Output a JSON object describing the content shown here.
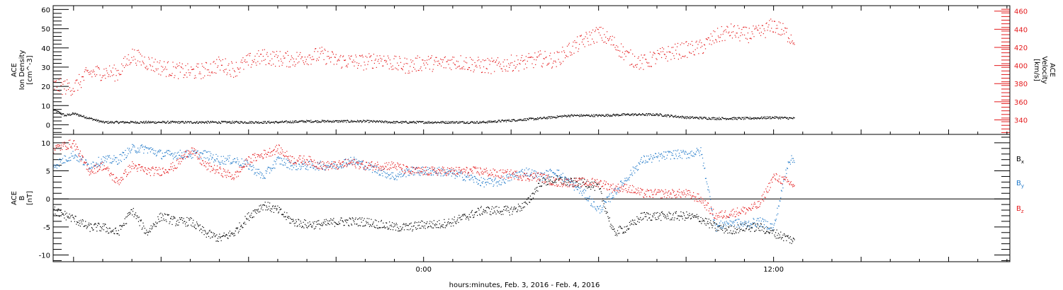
{
  "chart_data": [
    {
      "type": "scatter",
      "panel": "top",
      "ylabel_left": [
        "ACE",
        "Ion Density",
        "[cm^-3]"
      ],
      "ylabel_right": [
        "ACE",
        "Velocity",
        "[km/s]"
      ],
      "ylim_left": [
        -5,
        62
      ],
      "ylim_right": [
        324,
        466
      ],
      "yticks_left": [
        "0",
        "10",
        "20",
        "30",
        "40",
        "50",
        "60"
      ],
      "yticks_right": [
        "340",
        "360",
        "380",
        "400",
        "420",
        "440",
        "460"
      ],
      "colors": {
        "density": "#000000",
        "velocity": "#e41a1c"
      },
      "series": [
        {
          "key": "density",
          "axis": "left",
          "x": [
            -12.7,
            -12.3,
            -12,
            -11,
            -10,
            -9,
            -8,
            -7,
            -6,
            -5,
            -4,
            -3,
            -2,
            -1,
            0,
            1,
            2,
            3,
            4,
            5,
            6,
            7,
            8,
            9,
            10,
            11,
            12,
            12.7
          ],
          "values": [
            8,
            5,
            6,
            1.5,
            1.5,
            1.5,
            1.5,
            1.5,
            1.5,
            1.5,
            2,
            2,
            2,
            1.5,
            1.5,
            1.5,
            1.5,
            2.5,
            3.5,
            5,
            5,
            5.5,
            5.5,
            4,
            3.5,
            3.5,
            4,
            3.5
          ]
        },
        {
          "key": "velocity",
          "axis": "right",
          "x": [
            -12.7,
            -12,
            -11.5,
            -11,
            -10.5,
            -10,
            -9.5,
            -9,
            -8.5,
            -8,
            -7.5,
            -7,
            -6.5,
            -6,
            -5.5,
            -5,
            -4.5,
            -4,
            -3.5,
            -3,
            -2.5,
            -2,
            -1.5,
            -1,
            -0.5,
            0,
            0.5,
            1,
            1.5,
            2,
            2.5,
            3,
            3.5,
            4,
            4.5,
            5,
            5.5,
            6,
            6.5,
            7,
            7.5,
            8,
            8.5,
            9,
            9.5,
            10,
            10.5,
            11,
            11.5,
            12,
            12.5,
            12.7
          ],
          "values": [
            378,
            376,
            392,
            393,
            392,
            412,
            404,
            398,
            395,
            393,
            395,
            402,
            396,
            405,
            410,
            408,
            407,
            410,
            412,
            406,
            405,
            404,
            408,
            402,
            400,
            404,
            402,
            405,
            403,
            400,
            400,
            403,
            404,
            408,
            406,
            418,
            428,
            436,
            425,
            410,
            403,
            410,
            415,
            418,
            420,
            432,
            438,
            434,
            436,
            445,
            434,
            428
          ]
        }
      ]
    },
    {
      "type": "scatter",
      "panel": "bottom",
      "ylabel_left": [
        "ACE",
        "B",
        "[nT]"
      ],
      "ylim": [
        -11.2,
        11.5
      ],
      "yticks": [
        "-10",
        "-5",
        "0",
        "5",
        "10"
      ],
      "legend": {
        "placement": "right",
        "entries": [
          "Bx",
          "By",
          "Bz"
        ]
      },
      "colors": {
        "Bx": "#000000",
        "By": "#1f78c8",
        "Bz": "#e41a1c"
      },
      "series": [
        {
          "key": "Bx",
          "x": [
            -12.7,
            -12,
            -11.5,
            -11,
            -10.5,
            -10,
            -9.5,
            -9,
            -8.5,
            -8,
            -7.5,
            -7,
            -6.5,
            -6,
            -5.5,
            -5,
            -4.5,
            -4,
            -3.5,
            -3,
            -2.5,
            -2,
            -1.5,
            -1,
            -0.5,
            0,
            0.5,
            1,
            1.5,
            2,
            2.5,
            3,
            3.5,
            4,
            4.5,
            5,
            5.5,
            6,
            6.5,
            7,
            7.5,
            8,
            8.5,
            9,
            9.5,
            10,
            10.5,
            11,
            11.5,
            12,
            12.5,
            12.7
          ],
          "values": [
            -2,
            -3.5,
            -5,
            -5,
            -6,
            -2,
            -6,
            -3,
            -4,
            -4,
            -6,
            -7,
            -6,
            -3,
            -1,
            -2,
            -4,
            -4.5,
            -4.5,
            -4,
            -4,
            -4,
            -4.5,
            -5,
            -5,
            -4.5,
            -4.5,
            -4,
            -3,
            -2,
            -2,
            -2,
            -1,
            3,
            3.5,
            3,
            3,
            2,
            -6,
            -5,
            -3,
            -3,
            -3,
            -3,
            -3.5,
            -5,
            -5.5,
            -5,
            -5,
            -6,
            -7,
            -7.5
          ]
        },
        {
          "key": "By",
          "x": [
            -12.7,
            -12,
            -11.5,
            -11,
            -10.5,
            -10,
            -9.5,
            -9,
            -8.5,
            -8,
            -7.5,
            -7,
            -6.5,
            -6,
            -5.5,
            -5,
            -4.5,
            -4,
            -3.5,
            -3,
            -2.5,
            -2,
            -1.5,
            -1,
            -0.5,
            0,
            0.5,
            1,
            1.5,
            2,
            2.5,
            3,
            3.5,
            4,
            4.5,
            5,
            5.5,
            6,
            6.5,
            7,
            7.5,
            8,
            8.5,
            9,
            9.5,
            10,
            10.5,
            11,
            11.5,
            12,
            12.5,
            12.7
          ],
          "values": [
            6,
            8,
            6,
            7,
            7,
            9,
            9,
            8,
            8,
            8,
            8,
            7,
            7,
            6,
            4,
            7,
            6,
            6,
            6,
            6,
            7,
            6,
            5,
            4,
            5,
            5,
            5,
            4.5,
            4,
            3,
            3,
            4,
            5,
            4,
            5,
            3,
            1,
            -2,
            1,
            4,
            7,
            7.5,
            8,
            8,
            8.5,
            -5,
            -4,
            -4.5,
            -4,
            -5,
            7,
            7
          ]
        },
        {
          "key": "Bz",
          "x": [
            -12.7,
            -12,
            -11.5,
            -11,
            -10.5,
            -10,
            -9.5,
            -9,
            -8.5,
            -8,
            -7.5,
            -7,
            -6.5,
            -6,
            -5.5,
            -5,
            -4.5,
            -4,
            -3.5,
            -3,
            -2.5,
            -2,
            -1.5,
            -1,
            -0.5,
            0,
            0.5,
            1,
            1.5,
            2,
            2.5,
            3,
            3.5,
            4,
            4.5,
            5,
            5.5,
            6,
            6.5,
            7,
            7.5,
            8,
            8.5,
            9,
            9.5,
            10,
            10.5,
            11,
            11.5,
            12,
            12.5,
            12.7
          ],
          "values": [
            9,
            10,
            5,
            6,
            3,
            6,
            5,
            5,
            6,
            9,
            6,
            5,
            4,
            7,
            8,
            9,
            7,
            7,
            6,
            6,
            6.5,
            6,
            6,
            6,
            5,
            5,
            5,
            5,
            5,
            5,
            4.5,
            4.5,
            4,
            4,
            3,
            3,
            3,
            3,
            2,
            2,
            1,
            1,
            1,
            1,
            0,
            -3,
            -2.5,
            -2,
            -1,
            4,
            3,
            2.5
          ]
        }
      ]
    }
  ],
  "xaxis": {
    "xlim": [
      -12.7,
      20.1
    ],
    "ticks": [
      {
        "x": 0,
        "label": "0:00"
      },
      {
        "x": 12,
        "label": "12:00"
      }
    ],
    "title": "hours:minutes, Feb.  3, 2016 - Feb.  4, 2016"
  }
}
